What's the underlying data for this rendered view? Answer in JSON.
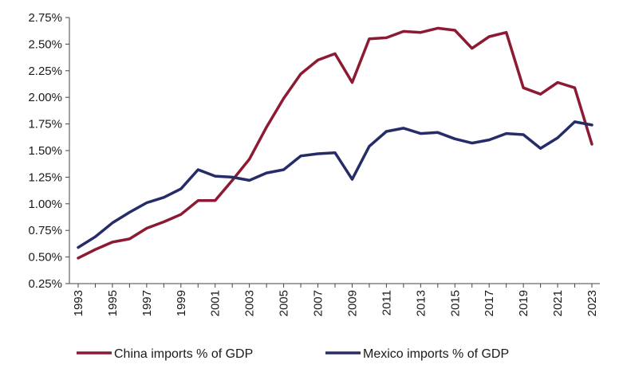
{
  "chart_data": {
    "type": "line",
    "title": "",
    "xlabel": "",
    "ylabel": "",
    "x": [
      1993,
      1994,
      1995,
      1996,
      1997,
      1998,
      1999,
      2000,
      2001,
      2002,
      2003,
      2004,
      2005,
      2006,
      2007,
      2008,
      2009,
      2010,
      2011,
      2012,
      2013,
      2014,
      2015,
      2016,
      2017,
      2018,
      2019,
      2020,
      2021,
      2022,
      2023
    ],
    "x_tick_labels": [
      "1993",
      "1995",
      "1997",
      "1999",
      "2001",
      "2003",
      "2005",
      "2007",
      "2009",
      "2011",
      "2013",
      "2015",
      "2017",
      "2019",
      "2021",
      "2023"
    ],
    "ylim": [
      0.25,
      2.75
    ],
    "y_ticks": [
      0.25,
      0.5,
      0.75,
      1.0,
      1.25,
      1.5,
      1.75,
      2.0,
      2.25,
      2.5,
      2.75
    ],
    "y_tick_labels": [
      "0.25%",
      "0.50%",
      "0.75%",
      "1.00%",
      "1.25%",
      "1.50%",
      "1.75%",
      "2.00%",
      "2.25%",
      "2.50%",
      "2.75%"
    ],
    "grid": false,
    "legend_position": "bottom",
    "series": [
      {
        "name": "China imports % of GDP",
        "color": "#8b1a32",
        "values": [
          0.49,
          0.57,
          0.64,
          0.67,
          0.77,
          0.83,
          0.9,
          1.03,
          1.03,
          1.22,
          1.42,
          1.72,
          1.99,
          2.22,
          2.35,
          2.41,
          2.14,
          2.55,
          2.56,
          2.62,
          2.61,
          2.65,
          2.63,
          2.46,
          2.57,
          2.61,
          2.09,
          2.03,
          2.14,
          2.09,
          1.56
        ]
      },
      {
        "name": "Mexico imports % of GDP",
        "color": "#262c68",
        "values": [
          0.59,
          0.69,
          0.82,
          0.92,
          1.01,
          1.06,
          1.14,
          1.32,
          1.26,
          1.25,
          1.22,
          1.29,
          1.32,
          1.45,
          1.47,
          1.48,
          1.23,
          1.54,
          1.68,
          1.71,
          1.66,
          1.67,
          1.61,
          1.57,
          1.6,
          1.66,
          1.65,
          1.52,
          1.62,
          1.77,
          1.74
        ]
      }
    ]
  }
}
